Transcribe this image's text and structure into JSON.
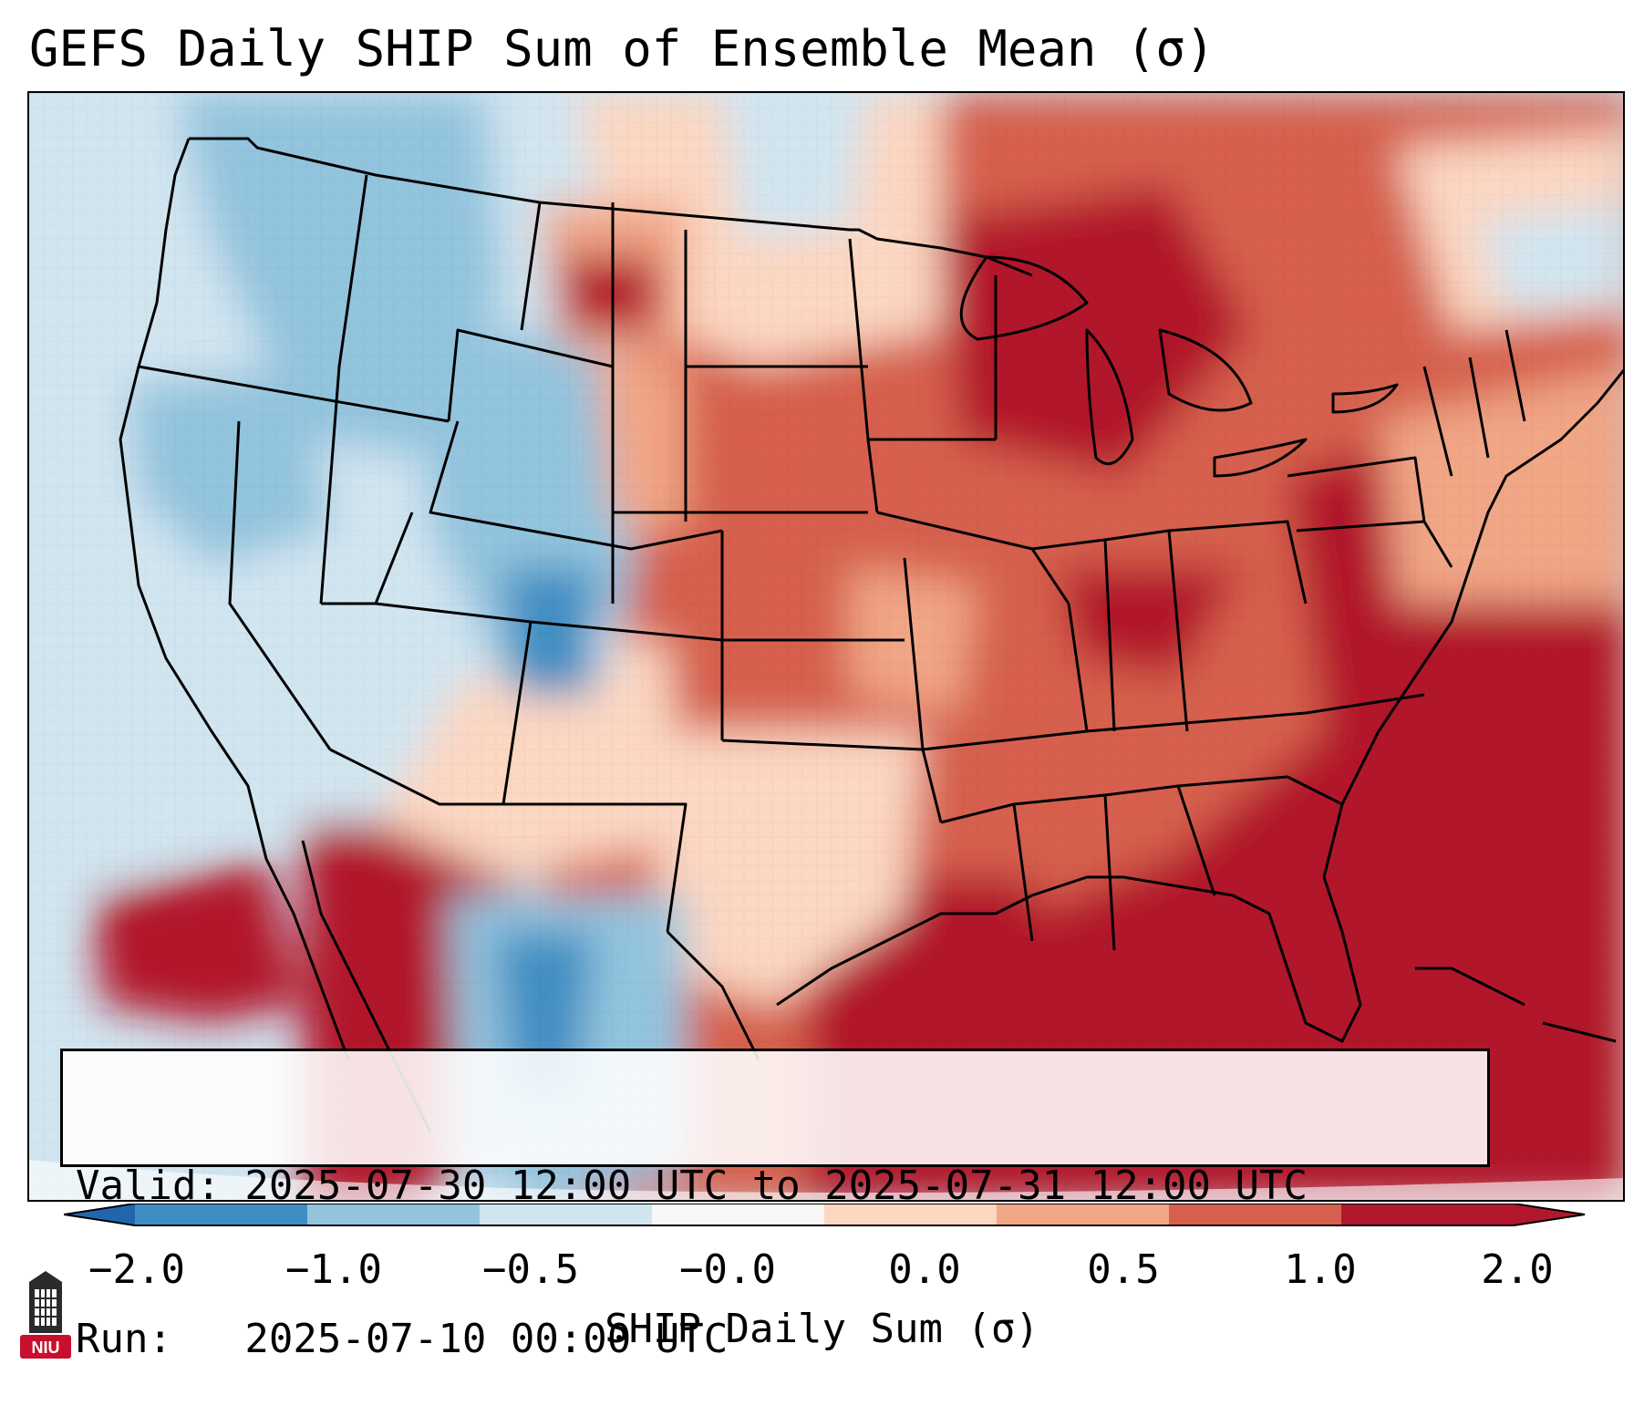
{
  "title": "GEFS Daily SHIP Sum of Ensemble Mean (σ)",
  "info": {
    "valid": "Valid: 2025-07-30 12:00 UTC to 2025-07-31 12:00 UTC",
    "run": "Run:   2025-07-10 00:00 UTC"
  },
  "colorbar": {
    "label": "SHIP Daily Sum (σ)",
    "ticks": [
      "−2.0",
      "−1.0",
      "−0.5",
      "−0.0",
      "0.0",
      "0.5",
      "1.0",
      "2.0"
    ],
    "colors": [
      "#2b7bba",
      "#3f8ec3",
      "#93c4de",
      "#d1e5f0",
      "#f7f7f7",
      "#fcd7c2",
      "#f1a686",
      "#d6604d",
      "#b2182b"
    ],
    "under_color": "#2166ac",
    "over_color": "#b2182b"
  },
  "logo": {
    "text": "NIU",
    "icon": "niu-building-icon"
  }
}
